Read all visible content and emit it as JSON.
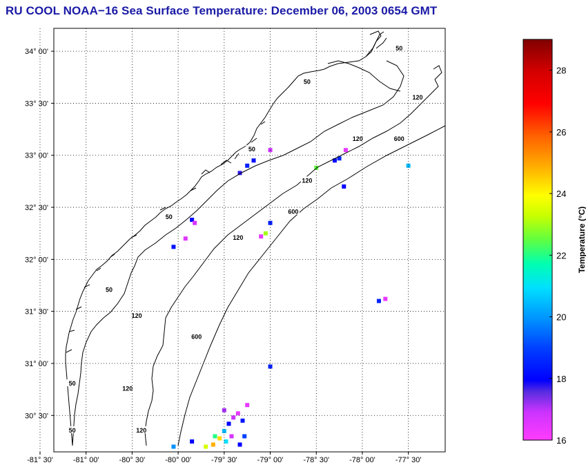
{
  "title": "RU COOL  NOAA−16  Sea Surface Temperature:  December 06, 2003 0654 GMT",
  "map": {
    "lon_range": [
      -81.5,
      -77.25
    ],
    "lat_range": [
      30.15,
      34.22
    ],
    "lat_ticks": [
      {
        "value": 34.0,
        "label": "34° 00'"
      },
      {
        "value": 33.5,
        "label": "33° 30'"
      },
      {
        "value": 33.0,
        "label": "33° 00'"
      },
      {
        "value": 32.5,
        "label": "32° 30'"
      },
      {
        "value": 32.0,
        "label": "32° 00'"
      },
      {
        "value": 31.5,
        "label": "31° 30'"
      },
      {
        "value": 31.0,
        "label": "31° 00'"
      },
      {
        "value": 30.5,
        "label": "30° 30'"
      }
    ],
    "lon_ticks": [
      {
        "value": -81.5,
        "label": "-81° 30'"
      },
      {
        "value": -81.0,
        "label": "-81° 00'"
      },
      {
        "value": -80.5,
        "label": "-80° 30'"
      },
      {
        "value": -80.0,
        "label": "-80° 00'"
      },
      {
        "value": -79.5,
        "label": "-79° 30'"
      },
      {
        "value": -79.0,
        "label": "-79° 00'"
      },
      {
        "value": -78.5,
        "label": "-78° 30'"
      },
      {
        "value": -78.0,
        "label": "-78° 00'"
      },
      {
        "value": -77.5,
        "label": "-77° 30'"
      }
    ],
    "contour_labels": [
      {
        "text": "50",
        "lon": -77.6,
        "lat": 34.02
      },
      {
        "text": "50",
        "lon": -78.6,
        "lat": 33.7
      },
      {
        "text": "120",
        "lon": -77.4,
        "lat": 33.55
      },
      {
        "text": "50",
        "lon": -79.2,
        "lat": 33.05
      },
      {
        "text": "120",
        "lon": -78.05,
        "lat": 33.15
      },
      {
        "text": "600",
        "lon": -77.6,
        "lat": 33.15
      },
      {
        "text": "120",
        "lon": -78.6,
        "lat": 32.75
      },
      {
        "text": "600",
        "lon": -78.75,
        "lat": 32.45
      },
      {
        "text": "50",
        "lon": -80.1,
        "lat": 32.4
      },
      {
        "text": "120",
        "lon": -79.35,
        "lat": 32.2
      },
      {
        "text": "50",
        "lon": -80.75,
        "lat": 31.7
      },
      {
        "text": "120",
        "lon": -80.45,
        "lat": 31.45
      },
      {
        "text": "600",
        "lon": -79.8,
        "lat": 31.25
      },
      {
        "text": "50",
        "lon": -81.15,
        "lat": 30.8
      },
      {
        "text": "120",
        "lon": -80.55,
        "lat": 30.75
      },
      {
        "text": "120",
        "lon": -80.4,
        "lat": 30.35
      },
      {
        "text": "50",
        "lon": -81.15,
        "lat": 30.35
      }
    ],
    "sst_pixels": [
      {
        "lon": -79.25,
        "lat": 32.9,
        "temp": 18.5
      },
      {
        "lon": -79.18,
        "lat": 32.95,
        "temp": 18.2
      },
      {
        "lon": -79.33,
        "lat": 32.83,
        "temp": 17.8
      },
      {
        "lon": -79.0,
        "lat": 33.05,
        "temp": 17.0
      },
      {
        "lon": -78.3,
        "lat": 32.95,
        "temp": 18.0
      },
      {
        "lon": -78.25,
        "lat": 32.97,
        "temp": 18.6
      },
      {
        "lon": -78.18,
        "lat": 33.05,
        "temp": 16.5
      },
      {
        "lon": -78.5,
        "lat": 32.88,
        "temp": 22.5
      },
      {
        "lon": -78.2,
        "lat": 32.7,
        "temp": 18.0
      },
      {
        "lon": -79.0,
        "lat": 32.35,
        "temp": 18.5
      },
      {
        "lon": -79.05,
        "lat": 32.25,
        "temp": 23.0
      },
      {
        "lon": -79.1,
        "lat": 32.22,
        "temp": 16.5
      },
      {
        "lon": -79.85,
        "lat": 32.38,
        "temp": 18.0
      },
      {
        "lon": -79.82,
        "lat": 32.35,
        "temp": 16.8
      },
      {
        "lon": -80.05,
        "lat": 32.12,
        "temp": 18.3
      },
      {
        "lon": -79.92,
        "lat": 32.2,
        "temp": 16.6
      },
      {
        "lon": -77.82,
        "lat": 31.6,
        "temp": 18.5
      },
      {
        "lon": -77.75,
        "lat": 31.62,
        "temp": 16.5
      },
      {
        "lon": -77.5,
        "lat": 32.9,
        "temp": 20.5
      },
      {
        "lon": -79.0,
        "lat": 30.97,
        "temp": 18.5
      },
      {
        "lon": -79.6,
        "lat": 30.3,
        "temp": 22.0
      },
      {
        "lon": -79.55,
        "lat": 30.28,
        "temp": 24.5
      },
      {
        "lon": -79.62,
        "lat": 30.22,
        "temp": 25.0
      },
      {
        "lon": -79.5,
        "lat": 30.35,
        "temp": 20.5
      },
      {
        "lon": -79.45,
        "lat": 30.42,
        "temp": 18.0
      },
      {
        "lon": -79.4,
        "lat": 30.48,
        "temp": 17.0
      },
      {
        "lon": -79.35,
        "lat": 30.52,
        "temp": 16.5
      },
      {
        "lon": -79.3,
        "lat": 30.45,
        "temp": 18.3
      },
      {
        "lon": -79.28,
        "lat": 30.3,
        "temp": 19.0
      },
      {
        "lon": -79.33,
        "lat": 30.22,
        "temp": 18.0
      },
      {
        "lon": -79.48,
        "lat": 30.25,
        "temp": 21.0
      },
      {
        "lon": -79.7,
        "lat": 30.2,
        "temp": 23.5
      },
      {
        "lon": -79.42,
        "lat": 30.3,
        "temp": 16.8
      },
      {
        "lon": -79.25,
        "lat": 30.6,
        "temp": 16.5
      },
      {
        "lon": -79.5,
        "lat": 30.55,
        "temp": 17.2
      },
      {
        "lon": -79.85,
        "lat": 30.25,
        "temp": 18.0
      },
      {
        "lon": -80.05,
        "lat": 30.2,
        "temp": 20.0
      }
    ]
  },
  "colorbar": {
    "min": 16,
    "max": 29,
    "ticks": [
      16,
      18,
      20,
      22,
      24,
      26,
      28
    ],
    "label": "Temperature (°C)"
  }
}
